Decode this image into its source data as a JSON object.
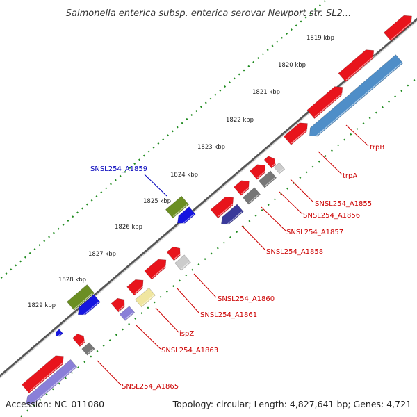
{
  "title": "Salmonella enterica subsp. enterica serovar Newport str. SL2...",
  "footer": {
    "accession": "Accession: NC_011080",
    "summary": "Topology: circular; Length: 4,827,641 bp; Genes: 4,721"
  },
  "ticks": [
    {
      "label": "1819 kbp"
    },
    {
      "label": "1820 kbp"
    },
    {
      "label": "1821 kbp"
    },
    {
      "label": "1822 kbp"
    },
    {
      "label": "1823 kbp"
    },
    {
      "label": "1824 kbp"
    },
    {
      "label": "1825 kbp"
    },
    {
      "label": "1826 kbp"
    },
    {
      "label": "1827 kbp"
    },
    {
      "label": "1828 kbp"
    },
    {
      "label": "1829 kbp"
    }
  ],
  "features": [
    {
      "label": "trpB"
    },
    {
      "label": "trpA"
    },
    {
      "label": "SNSL254_A1855"
    },
    {
      "label": "SNSL254_A1856"
    },
    {
      "label": "SNSL254_A1857"
    },
    {
      "label": "SNSL254_A1858"
    },
    {
      "label": "SNSL254_A1859"
    },
    {
      "label": "SNSL254_A1860"
    },
    {
      "label": "SNSL254_A1861"
    },
    {
      "label": "ispZ"
    },
    {
      "label": "SNSL254_A1863"
    },
    {
      "label": "SNSL254_A1865"
    }
  ],
  "colors": {
    "forward_cds": "#e8141c",
    "reverse_cds": "#4f8ec8",
    "olive": "#6b8e23",
    "blue": "#1515e0",
    "navy": "#3a3a9a",
    "gray": "#777777",
    "lightgray": "#cccccc",
    "yellow": "#f0e6a0",
    "lavender": "#8a7fd8",
    "ruler_dots": "#1e8a1e",
    "backbone": "#888888",
    "label_red": "#cc0000",
    "label_blue": "#0000bb"
  }
}
